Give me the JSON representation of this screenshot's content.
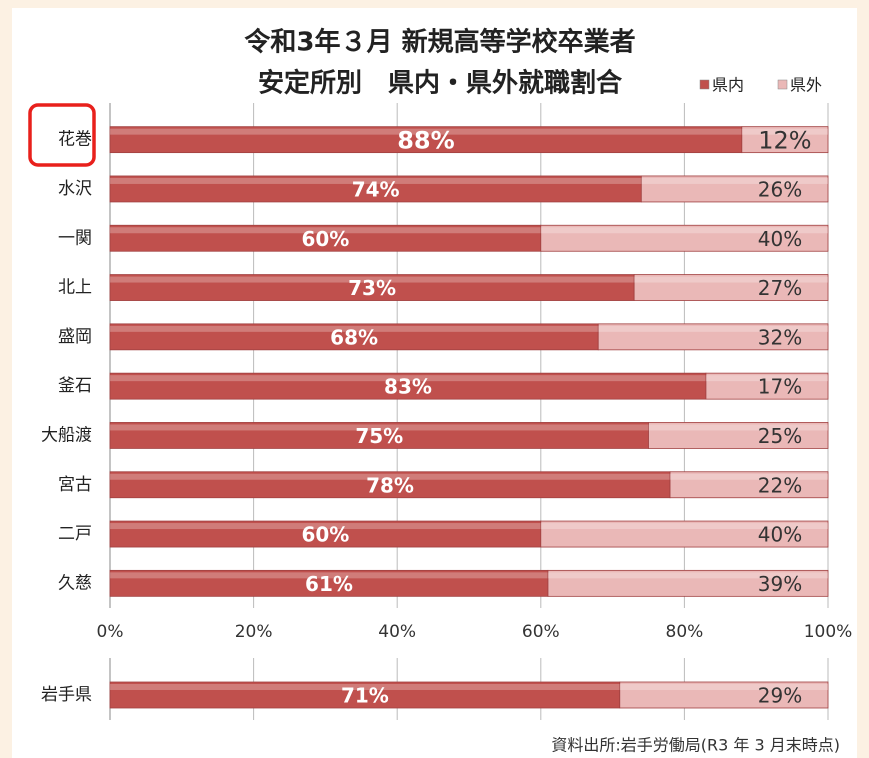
{
  "chart_data": [
    {
      "type": "bar",
      "orientation": "horizontal",
      "stacked": true,
      "title": "令和3年３月 新規高等学校卒業者",
      "subtitle": "安定所別　県内・県外就職割合",
      "categories": [
        "花巻",
        "水沢",
        "一関",
        "北上",
        "盛岡",
        "釜石",
        "大船渡",
        "宮古",
        "二戸",
        "久慈"
      ],
      "series": [
        {
          "name": "県内",
          "color": "#c0504d",
          "values": [
            88,
            74,
            60,
            73,
            68,
            83,
            75,
            78,
            60,
            61
          ],
          "value_labels": [
            "88%",
            "74%",
            "60%",
            "73%",
            "68%",
            "83%",
            "75%",
            "78%",
            "60%",
            "61%"
          ]
        },
        {
          "name": "県外",
          "color": "#eab8b7",
          "values": [
            12,
            26,
            40,
            27,
            32,
            17,
            25,
            22,
            40,
            39
          ],
          "value_labels": [
            "12%",
            "26%",
            "40%",
            "27%",
            "32%",
            "17%",
            "25%",
            "22%",
            "40%",
            "39%"
          ]
        }
      ],
      "xlim": [
        0,
        100
      ],
      "xticks": [
        {
          "value": 0,
          "label": "0%"
        },
        {
          "value": 20,
          "label": "20%"
        },
        {
          "value": 40,
          "label": "40%"
        },
        {
          "value": 60,
          "label": "60%"
        },
        {
          "value": 80,
          "label": "80%"
        },
        {
          "value": 100,
          "label": "100%"
        }
      ],
      "grid": true
    },
    {
      "type": "bar",
      "orientation": "horizontal",
      "stacked": true,
      "categories": [
        "岩手県"
      ],
      "series": [
        {
          "name": "県内",
          "color": "#c0504d",
          "values": [
            71
          ],
          "value_labels": [
            "71%"
          ]
        },
        {
          "name": "県外",
          "color": "#eab8b7",
          "values": [
            29
          ],
          "value_labels": [
            "29%"
          ]
        }
      ],
      "xlim": [
        0,
        100
      ],
      "xticks": [
        0,
        20,
        40,
        60,
        80,
        100
      ],
      "grid": true
    }
  ],
  "source": "資料出所:岩手労働局(R3 年 3 月末時点)"
}
